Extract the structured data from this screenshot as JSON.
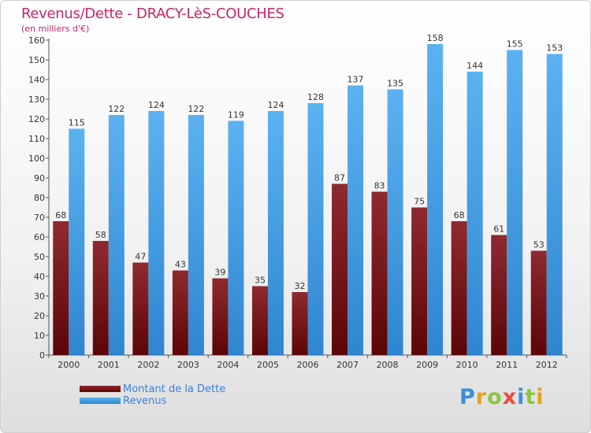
{
  "header": {
    "title": "Revenus/Dette - DRACY-LèS-COUCHES",
    "subtitle": "(en milliers d'€)"
  },
  "logo": {
    "letters": [
      "P",
      "r",
      "o",
      "x",
      "i",
      "t",
      "i"
    ]
  },
  "colors": {
    "dette": "#6e0f14",
    "revenus": "#4da3e6",
    "title": "#c8246b",
    "legend_text": "#3d7fdc"
  },
  "legend": [
    {
      "label": "Montant de la Dette",
      "color": "#6e0f14"
    },
    {
      "label": "Revenus",
      "color": "#4da3e6"
    }
  ],
  "chart_data": {
    "type": "bar",
    "title": "Revenus/Dette - DRACY-LèS-COUCHES",
    "subtitle": "(en milliers d'€)",
    "categories": [
      "2000",
      "2001",
      "2002",
      "2003",
      "2004",
      "2005",
      "2006",
      "2007",
      "2008",
      "2009",
      "2010",
      "2011",
      "2012"
    ],
    "series": [
      {
        "name": "Montant de la Dette",
        "values": [
          68,
          58,
          47,
          43,
          39,
          35,
          32,
          87,
          83,
          75,
          68,
          61,
          53
        ]
      },
      {
        "name": "Revenus",
        "values": [
          115,
          122,
          124,
          122,
          119,
          124,
          128,
          137,
          135,
          158,
          144,
          155,
          153
        ]
      }
    ],
    "ylim": [
      0,
      160
    ],
    "yticks": [
      0,
      10,
      20,
      30,
      40,
      50,
      60,
      70,
      80,
      90,
      100,
      110,
      120,
      130,
      140,
      150,
      160
    ],
    "grid": false,
    "legend_position": "bottom-left"
  }
}
